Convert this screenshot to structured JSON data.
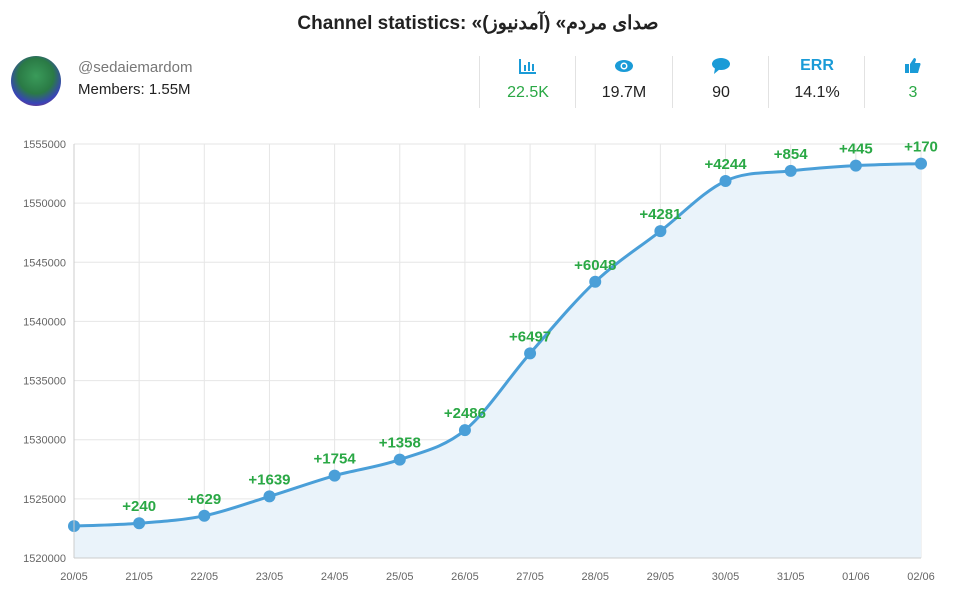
{
  "header": {
    "title": "Channel statistics: «صدای مردم» (آمدنیوز)",
    "handle": "@sedaiemardom",
    "members": "Members: 1.55M"
  },
  "stats": [
    {
      "icon": "bar-chart-icon",
      "value": "22.5K",
      "color": "#2aa845"
    },
    {
      "icon": "eye-icon",
      "value": "19.7M",
      "color": "#222222"
    },
    {
      "icon": "comment-icon",
      "value": "90",
      "color": "#222222"
    },
    {
      "icon": "err-icon",
      "label": "ERR",
      "value": "14.1%",
      "color": "#222222"
    },
    {
      "icon": "thumbs-up-icon",
      "value": "3",
      "color": "#2aa845"
    }
  ],
  "chart_data": {
    "type": "area",
    "categories": [
      "20/05",
      "21/05",
      "22/05",
      "23/05",
      "24/05",
      "25/05",
      "26/05",
      "27/05",
      "28/05",
      "29/05",
      "30/05",
      "31/05",
      "01/06",
      "02/06"
    ],
    "values": [
      1522700,
      1522940,
      1523569,
      1525208,
      1526962,
      1528320,
      1530806,
      1537303,
      1543351,
      1547632,
      1551876,
      1552730,
      1553175,
      1553345
    ],
    "labels": [
      "",
      "+240",
      "+629",
      "+1639",
      "+1754",
      "+1358",
      "+2486",
      "+6497",
      "+6048",
      "+4281",
      "+4244",
      "+854",
      "+445",
      "+170"
    ],
    "yticks": [
      1520000,
      1525000,
      1530000,
      1535000,
      1540000,
      1545000,
      1550000,
      1555000
    ],
    "ylim": [
      1520000,
      1555000
    ],
    "grid": true,
    "line_color": "#4a9fd8",
    "fill_color": "#eaf3fa",
    "label_color": "#2aa845"
  }
}
